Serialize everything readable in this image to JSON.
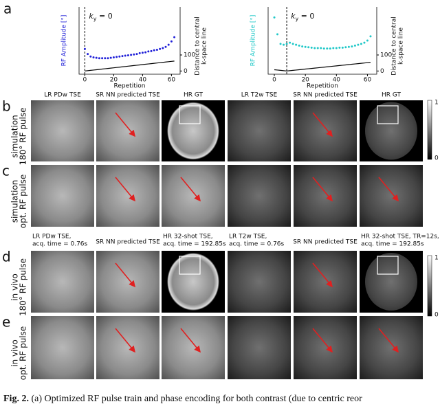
{
  "chart_data": [
    {
      "type": "scatter",
      "xlabel": "Repetition",
      "ylabel": "RF Amplitude [°]",
      "y2label": [
        "Distance to central",
        "k-space line"
      ],
      "annotation": "k",
      "annotation_sub": "y",
      "annotation_rest": " = 0",
      "vline_x": 0,
      "x": [
        0,
        2,
        4,
        6,
        8,
        10,
        12,
        14,
        16,
        18,
        20,
        22,
        24,
        26,
        28,
        30,
        32,
        34,
        36,
        38,
        40,
        42,
        44,
        46,
        48,
        50,
        52,
        54,
        56,
        58,
        60,
        62
      ],
      "series": [
        {
          "color": "#2020d8",
          "values": [
            60,
            48,
            42,
            40,
            39,
            38,
            38,
            38,
            38,
            39,
            40,
            41,
            42,
            43,
            44,
            45,
            46,
            47,
            48,
            50,
            51,
            52,
            54,
            55,
            57,
            58,
            60,
            62,
            65,
            70,
            78,
            88
          ]
        },
        {
          "color": "#000000",
          "axis": "y2",
          "values": [
            0,
            2,
            4,
            6,
            8,
            10,
            12,
            14,
            16,
            18,
            20,
            22,
            24,
            26,
            28,
            30,
            32,
            34,
            36,
            38,
            40,
            42,
            44,
            46,
            48,
            50,
            52,
            54,
            56,
            58,
            60,
            62
          ]
        }
      ],
      "xlim": [
        -4,
        66
      ],
      "xticks": [
        0,
        20,
        40,
        60
      ],
      "ylim": [
        0,
        160
      ],
      "y2lim": [
        -20,
        400
      ],
      "y2ticks": [
        0,
        100
      ]
    },
    {
      "type": "scatter",
      "xlabel": "Repetition",
      "ylabel": "RF Amplitude [°]",
      "y2label": [
        "Distance to central",
        "k-space line"
      ],
      "annotation": "k",
      "annotation_sub": "y",
      "annotation_rest": " = 0",
      "vline_x": 8,
      "x": [
        0,
        2,
        4,
        6,
        8,
        10,
        12,
        14,
        16,
        18,
        20,
        22,
        24,
        26,
        28,
        30,
        32,
        34,
        36,
        38,
        40,
        42,
        44,
        46,
        48,
        50,
        52,
        54,
        56,
        58,
        60,
        62
      ],
      "series": [
        {
          "color": "#20c8c8",
          "values": [
            135,
            95,
            72,
            70,
            72,
            75,
            72,
            70,
            68,
            66,
            65,
            64,
            63,
            62,
            62,
            62,
            61,
            61,
            61,
            62,
            62,
            63,
            63,
            64,
            65,
            66,
            68,
            70,
            72,
            75,
            80,
            90
          ]
        },
        {
          "color": "#000000",
          "axis": "y2",
          "values": [
            8,
            6,
            4,
            2,
            0,
            2,
            4,
            6,
            8,
            10,
            12,
            14,
            16,
            18,
            20,
            22,
            24,
            26,
            28,
            30,
            32,
            34,
            36,
            38,
            40,
            42,
            44,
            46,
            48,
            50,
            52,
            54
          ]
        }
      ],
      "xlim": [
        -4,
        66
      ],
      "xticks": [
        0,
        20,
        40,
        60
      ],
      "ylim": [
        0,
        160
      ],
      "y2lim": [
        -20,
        400
      ],
      "y2ticks": [
        0,
        100
      ]
    }
  ],
  "letters": [
    "a",
    "b",
    "c",
    "d",
    "e"
  ],
  "sim_headers": [
    "LR PDw TSE",
    "SR NN predicted TSE",
    "HR GT",
    "LR T2w TSE",
    "SR NN predicted TSE",
    "HR GT"
  ],
  "vivo_headers": [
    [
      "LR PDw TSE,",
      "acq. time = 0.76s"
    ],
    [
      "SR NN predicted TSE"
    ],
    [
      "HR 32-shot TSE,",
      "acq. time = 192.85s"
    ],
    [
      "LR T2w TSE,",
      "acq. time = 0.76s"
    ],
    [
      "SR NN predicted TSE"
    ],
    [
      "HR 32-shot TSE, TR=12s,",
      "acq. time = 192.85s"
    ]
  ],
  "row_labels": [
    [
      "simulation",
      "180° RF pulse"
    ],
    [
      "simulation",
      "opt. RF pulse"
    ],
    [
      "in vivo",
      "180° RF pulse"
    ],
    [
      "in vivo",
      "opt. RF pulse"
    ]
  ],
  "colorbar_ticks": [
    "1",
    "0"
  ],
  "caption_label": "Fig. 2.",
  "caption": "(a) Optimized RF pulse train and phase encoding for both contrast (due to centric reor"
}
